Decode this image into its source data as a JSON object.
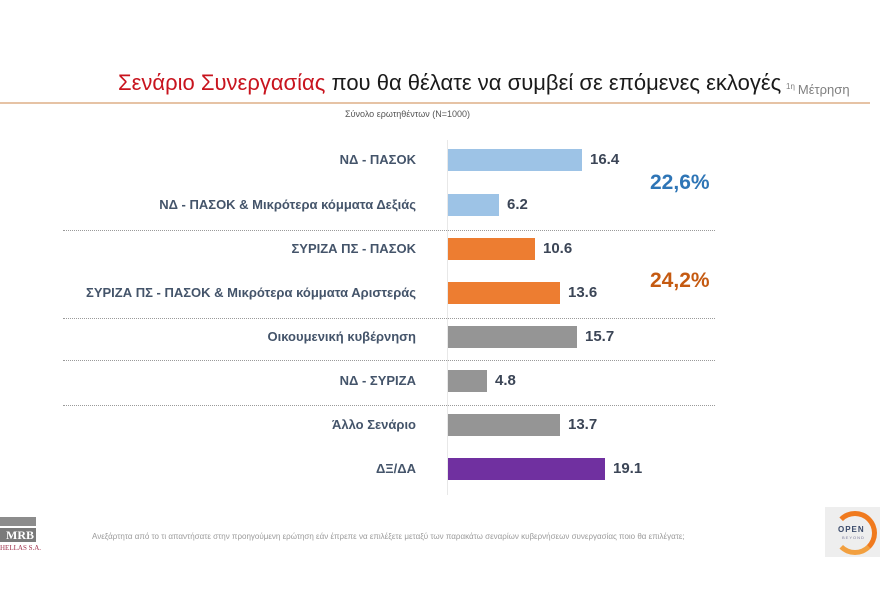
{
  "header": {
    "title_highlight": "Σενάριο Συνεργασίας",
    "title_rest": " που θα θέλατε να συμβεί σε επόμενες εκλογές",
    "measure_sup": "1η",
    "measure_label": "Μέτρηση",
    "subtitle": "Σύνολο ερωτηθέντων (N=1000)"
  },
  "colors": {
    "title_red": "#c8141e",
    "nd_blue": "#9dc3e6",
    "syriza_orange": "#ed7d31",
    "grey": "#959595",
    "purple": "#7030a0",
    "total_blue": "#2e75b6",
    "total_orange": "#c55a11"
  },
  "chart_data": {
    "type": "bar",
    "orientation": "horizontal",
    "title": "Σενάριο Συνεργασίας που θα θέλατε να συμβεί σε επόμενες εκλογές",
    "subtitle": "Σύνολο ερωτηθέντων (N=1000)",
    "xlabel": "",
    "ylabel": "",
    "unit": "%",
    "categories": [
      "ΝΔ - ΠΑΣΟΚ",
      "ΝΔ - ΠΑΣΟΚ & Μικρότερα κόμματα Δεξιάς",
      "ΣΥΡΙΖΑ ΠΣ - ΠΑΣΟΚ",
      "ΣΥΡΙΖΑ ΠΣ - ΠΑΣΟΚ & Μικρότερα κόμματα Αριστεράς",
      "Οικουμενική κυβέρνηση",
      "ΝΔ - ΣΥΡΙΖΑ",
      "Άλλο Σενάριο",
      "ΔΞ/ΔΑ"
    ],
    "values": [
      16.4,
      6.2,
      10.6,
      13.6,
      15.7,
      4.8,
      13.7,
      19.1
    ],
    "value_labels": [
      "16.4",
      "6.2",
      "10.6",
      "13.6",
      "15.7",
      "4.8",
      "13.7",
      "19.1"
    ],
    "bar_colors": [
      "#9dc3e6",
      "#9dc3e6",
      "#ed7d31",
      "#ed7d31",
      "#959595",
      "#959595",
      "#959595",
      "#7030a0"
    ],
    "group_totals": [
      {
        "label": "22,6%",
        "rows": [
          0,
          1
        ],
        "color": "#2e75b6"
      },
      {
        "label": "24,2%",
        "rows": [
          2,
          3
        ],
        "color": "#c55a11"
      }
    ],
    "grid": false,
    "legend": "none"
  },
  "footer": {
    "question": "Ανεξάρτητα από το τι απαντήσατε στην προηγούμενη ερώτηση εάν έπρεπε να επιλέξετε μεταξύ των παρακάτω σεναρίων κυβερνήσεων συνεργασίας ποιο θα επιλέγατε;",
    "mrb_logo": "MRB",
    "mrb_sub": "HELLAS S.A.",
    "open_logo": "OPEN",
    "open_sub": "BEYOND"
  }
}
